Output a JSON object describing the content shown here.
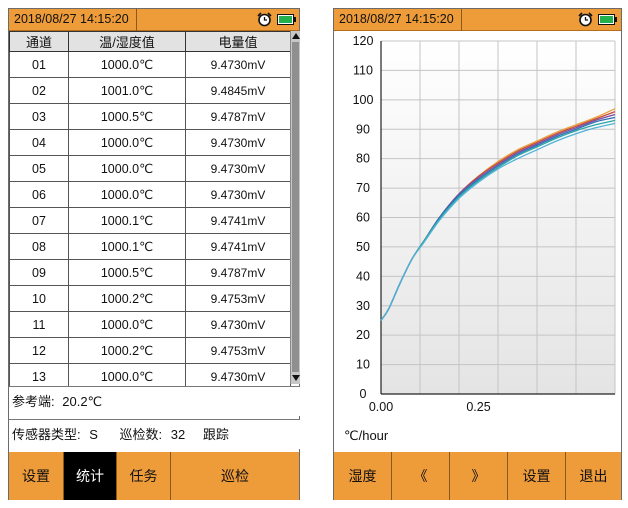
{
  "left_screen": {
    "status": {
      "datetime": "2018/08/27 14:15:20"
    },
    "table": {
      "headers": [
        "通道",
        "温/湿度值",
        "电量值"
      ],
      "rows": [
        {
          "channel": "01",
          "temp": "1000.0℃",
          "voltage": "9.4730mV"
        },
        {
          "channel": "02",
          "temp": "1001.0℃",
          "voltage": "9.4845mV"
        },
        {
          "channel": "03",
          "temp": "1000.5℃",
          "voltage": "9.4787mV"
        },
        {
          "channel": "04",
          "temp": "1000.0℃",
          "voltage": "9.4730mV"
        },
        {
          "channel": "05",
          "temp": "1000.0℃",
          "voltage": "9.4730mV"
        },
        {
          "channel": "06",
          "temp": "1000.0℃",
          "voltage": "9.4730mV"
        },
        {
          "channel": "07",
          "temp": "1000.1℃",
          "voltage": "9.4741mV"
        },
        {
          "channel": "08",
          "temp": "1000.1℃",
          "voltage": "9.4741mV"
        },
        {
          "channel": "09",
          "temp": "1000.5℃",
          "voltage": "9.4787mV"
        },
        {
          "channel": "10",
          "temp": "1000.2℃",
          "voltage": "9.4753mV"
        },
        {
          "channel": "11",
          "temp": "1000.0℃",
          "voltage": "9.4730mV"
        },
        {
          "channel": "12",
          "temp": "1000.2℃",
          "voltage": "9.4753mV"
        },
        {
          "channel": "13",
          "temp": "1000.0℃",
          "voltage": "9.4730mV"
        }
      ]
    },
    "reference": {
      "label": "参考端:",
      "value": "20.2℃"
    },
    "sensor_info": {
      "type_label": "传感器类型:",
      "type_value": "S",
      "count_label": "巡检数:",
      "count_value": "32",
      "mode": "跟踪"
    },
    "buttons": [
      "设置",
      "统计",
      "任务",
      "巡检"
    ],
    "active_button": "统计"
  },
  "right_screen": {
    "status": {
      "datetime": "2018/08/27 14:15:20"
    },
    "unit_label": "℃/hour",
    "buttons": [
      "湿度",
      "《",
      "》",
      "设置",
      "退出"
    ]
  },
  "colors": {
    "orange": "#ee9b3a",
    "battery_green": "#22b14c",
    "series": [
      "#e8a13a",
      "#c94a3a",
      "#7a4fa0",
      "#2e6fb8",
      "#2aa6a6",
      "#53b3d8"
    ]
  },
  "icons": [
    "alarm-clock-icon",
    "battery-icon",
    "scroll-up-icon",
    "scroll-down-icon"
  ],
  "chart_data": {
    "type": "line",
    "xlim": [
      0,
      0.6
    ],
    "ylim": [
      0,
      120
    ],
    "yticks": [
      0,
      10,
      20,
      30,
      40,
      50,
      60,
      70,
      80,
      90,
      100,
      110,
      120
    ],
    "xtick_labels": [
      {
        "value": 0,
        "label": "0.00"
      },
      {
        "value": 0.25,
        "label": "0.25"
      }
    ],
    "grid": true,
    "x": [
      0.0,
      0.02,
      0.05,
      0.08,
      0.11,
      0.15,
      0.2,
      0.25,
      0.3,
      0.35,
      0.4,
      0.45,
      0.5,
      0.55,
      0.6
    ],
    "series": [
      {
        "values": [
          25,
          29,
          38,
          46,
          52,
          60,
          68,
          74,
          79,
          83,
          86,
          89,
          91.5,
          94,
          97
        ]
      },
      {
        "values": [
          25,
          29,
          38,
          46,
          52,
          60,
          68,
          74,
          78.5,
          82.5,
          85.5,
          88.5,
          91,
          93.5,
          96
        ]
      },
      {
        "values": [
          25,
          29,
          38,
          46,
          52,
          60,
          68,
          73.5,
          78,
          82,
          85,
          88,
          90.5,
          93,
          95
        ]
      },
      {
        "values": [
          25,
          29,
          38,
          46,
          52,
          60,
          67.5,
          73,
          77.5,
          81.5,
          84.5,
          87.5,
          90,
          92.5,
          94
        ]
      },
      {
        "values": [
          25,
          29,
          38,
          46,
          52,
          59.5,
          67,
          72.5,
          77,
          81,
          84,
          87,
          89.5,
          91.5,
          93
        ]
      },
      {
        "values": [
          25,
          29,
          38,
          46,
          51.5,
          59,
          66.5,
          72,
          76.5,
          80,
          83,
          86,
          88.5,
          90.5,
          92
        ]
      }
    ]
  }
}
